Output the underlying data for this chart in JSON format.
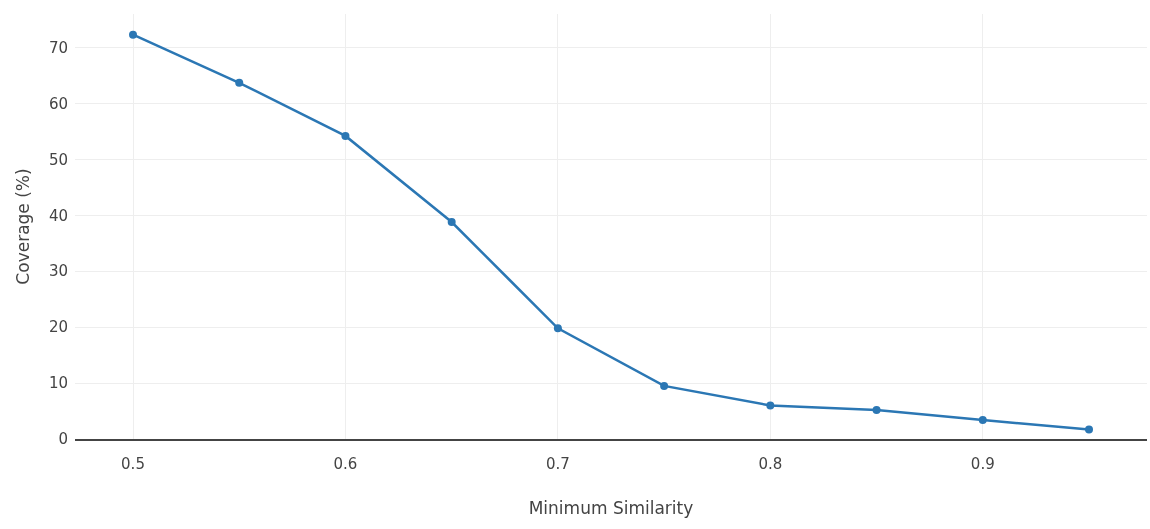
{
  "chart_data": {
    "type": "line",
    "xlabel": "Minimum Similarity",
    "ylabel": "Coverage (%)",
    "x": [
      0.5,
      0.55,
      0.6,
      0.65,
      0.7,
      0.75,
      0.8,
      0.85,
      0.9,
      0.95
    ],
    "series": [
      {
        "color": "#2b77b4",
        "values": [
          72.3,
          63.7,
          54.2,
          38.8,
          19.8,
          9.5,
          6.0,
          5.2,
          3.4,
          1.7
        ]
      }
    ],
    "xlim": [
      0.4727,
      0.9773
    ],
    "xticks": [
      0.5,
      0.6,
      0.7,
      0.8,
      0.9
    ],
    "ylim": [
      0,
      76
    ],
    "yticks": [
      0,
      10,
      20,
      30,
      40,
      50,
      60,
      70
    ],
    "grid": true,
    "marker": "circle",
    "line_style": "solid"
  }
}
